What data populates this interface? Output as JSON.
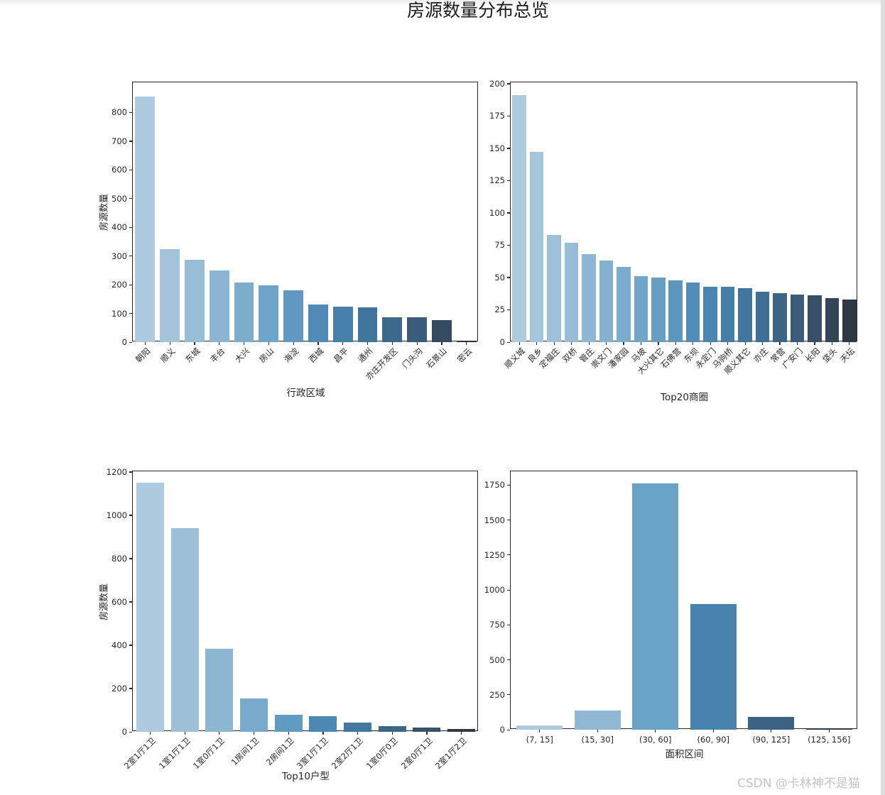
{
  "figure_title": "房源数量分布总览",
  "watermark": {
    "text": "CSDN @卡林神不是猫"
  },
  "palette_stops": [
    {
      "t": 0.0,
      "c": "#adcade"
    },
    {
      "t": 0.22,
      "c": "#8db6d3"
    },
    {
      "t": 0.4,
      "c": "#6ba3c7"
    },
    {
      "t": 0.55,
      "c": "#4d89b5"
    },
    {
      "t": 0.7,
      "c": "#3e749c"
    },
    {
      "t": 0.85,
      "c": "#3a5a78"
    },
    {
      "t": 1.0,
      "c": "#2f3a45"
    }
  ],
  "chart_data": [
    {
      "type": "bar",
      "name": "admin-regions",
      "title": "",
      "xlabel": "行政区域",
      "ylabel": "房源数量",
      "categories": [
        "朝阳",
        "顺义",
        "东城",
        "丰台",
        "大兴",
        "房山",
        "海淀",
        "西城",
        "昌平",
        "通州",
        "亦庄开发区",
        "门头沟",
        "石景山",
        "密云"
      ],
      "values": [
        855,
        325,
        287,
        250,
        207,
        198,
        181,
        131,
        124,
        121,
        86,
        86,
        77,
        3
      ],
      "ylim": [
        0,
        905
      ],
      "yticks": [
        0,
        100,
        200,
        300,
        400,
        500,
        600,
        700,
        800
      ],
      "grid": false,
      "legend": "none"
    },
    {
      "type": "bar",
      "name": "top20-business-districts",
      "title": "",
      "xlabel": "Top20商圈",
      "ylabel": "",
      "categories": [
        "顺义城",
        "良乡",
        "定福庄",
        "双桥",
        "管庄",
        "崇文门",
        "潘家园",
        "马坡",
        "大兴其它",
        "石佛营",
        "东坝",
        "永定门",
        "马驹桥",
        "顺义其它",
        "亦庄",
        "常营",
        "广安门",
        "长阳",
        "垡头",
        "天坛"
      ],
      "values": [
        191,
        147,
        83,
        77,
        68,
        63,
        58,
        51,
        50,
        48,
        46,
        43,
        43,
        42,
        39,
        38,
        37,
        36,
        34,
        33
      ],
      "ylim": [
        0,
        201
      ],
      "yticks": [
        0,
        25,
        50,
        75,
        100,
        125,
        150,
        175,
        200
      ],
      "grid": false,
      "legend": "none"
    },
    {
      "type": "bar",
      "name": "top10-house-types",
      "title": "",
      "xlabel": "Top10户型",
      "ylabel": "房源数量",
      "categories": [
        "2室1厅1卫",
        "1室1厅1卫",
        "1室0厅1卫",
        "1房间1卫",
        "2房间1卫",
        "3室1厅1卫",
        "2室2厅1卫",
        "1室0厅0卫",
        "2室0厅1卫",
        "2室1厅2卫"
      ],
      "values": [
        1150,
        940,
        385,
        155,
        80,
        72,
        42,
        27,
        20,
        13
      ],
      "ylim": [
        0,
        1203
      ],
      "yticks": [
        0,
        200,
        400,
        600,
        800,
        1000,
        1200
      ],
      "grid": false,
      "legend": "none"
    },
    {
      "type": "bar",
      "name": "area-intervals",
      "title": "",
      "xlabel": "面积区间",
      "ylabel": "",
      "categories": [
        "(7, 15]",
        "(15, 30]",
        "(30, 60]",
        "(60, 90]",
        "(90, 125]",
        "(125, 156]"
      ],
      "values": [
        30,
        135,
        1760,
        900,
        90,
        8
      ],
      "ylim": [
        0,
        1848
      ],
      "yticks": [
        0,
        250,
        500,
        750,
        1000,
        1250,
        1500,
        1750
      ],
      "grid": false,
      "legend": "none"
    }
  ]
}
